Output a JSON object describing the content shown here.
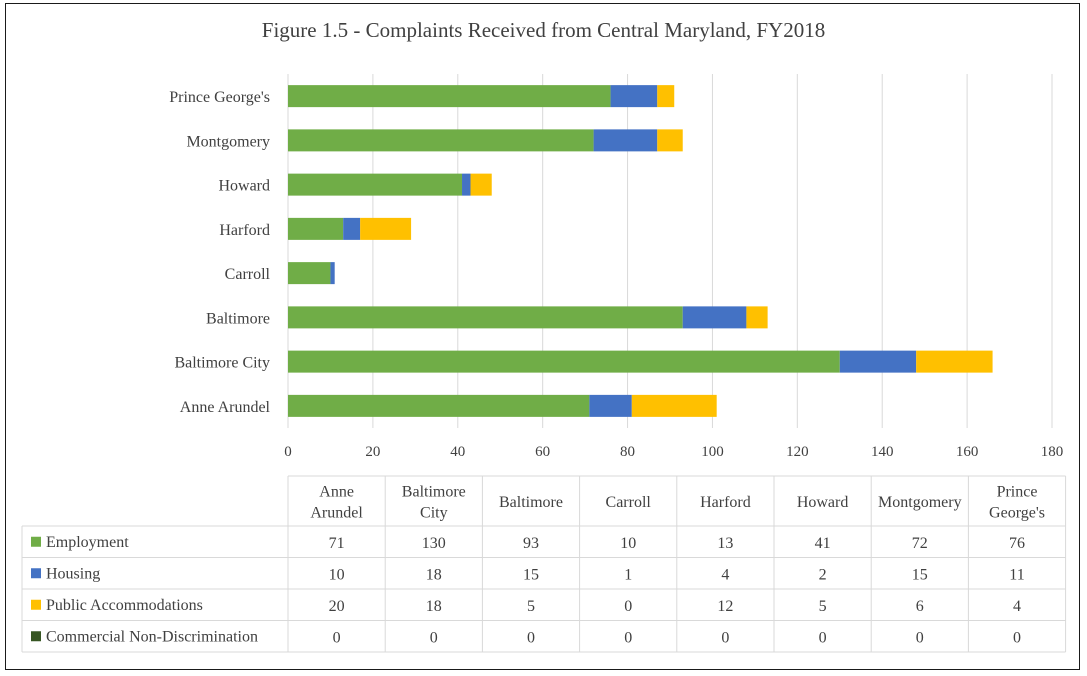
{
  "chart_data": {
    "type": "bar",
    "orientation": "horizontal",
    "stacked": true,
    "title": "Figure 1.5 - Complaints Received from Central Maryland, FY2018",
    "categories": [
      "Anne Arundel",
      "Baltimore City",
      "Baltimore",
      "Carroll",
      "Harford",
      "Howard",
      "Montgomery",
      "Prince George's"
    ],
    "table_headers": [
      [
        "Anne",
        "Arundel"
      ],
      [
        "Baltimore",
        "City"
      ],
      [
        "Baltimore"
      ],
      [
        "Carroll"
      ],
      [
        "Harford"
      ],
      [
        "Howard"
      ],
      [
        "Montgomery"
      ],
      [
        "Prince",
        "George's"
      ]
    ],
    "series": [
      {
        "name": "Employment",
        "color": "#70ad47",
        "values": [
          71,
          130,
          93,
          10,
          13,
          41,
          72,
          76
        ]
      },
      {
        "name": "Housing",
        "color": "#4472c4",
        "values": [
          10,
          18,
          15,
          1,
          4,
          2,
          15,
          11
        ]
      },
      {
        "name": "Public Accommodations",
        "color": "#ffc000",
        "values": [
          20,
          18,
          5,
          0,
          12,
          5,
          6,
          4
        ]
      },
      {
        "name": "Commercial Non-Discrimination",
        "color": "#375623",
        "values": [
          0,
          0,
          0,
          0,
          0,
          0,
          0,
          0
        ]
      }
    ],
    "xlim": [
      0,
      180
    ],
    "xticks": [
      0,
      20,
      40,
      60,
      80,
      100,
      120,
      140,
      160,
      180
    ],
    "grid": true,
    "legend": "data table below chart"
  }
}
